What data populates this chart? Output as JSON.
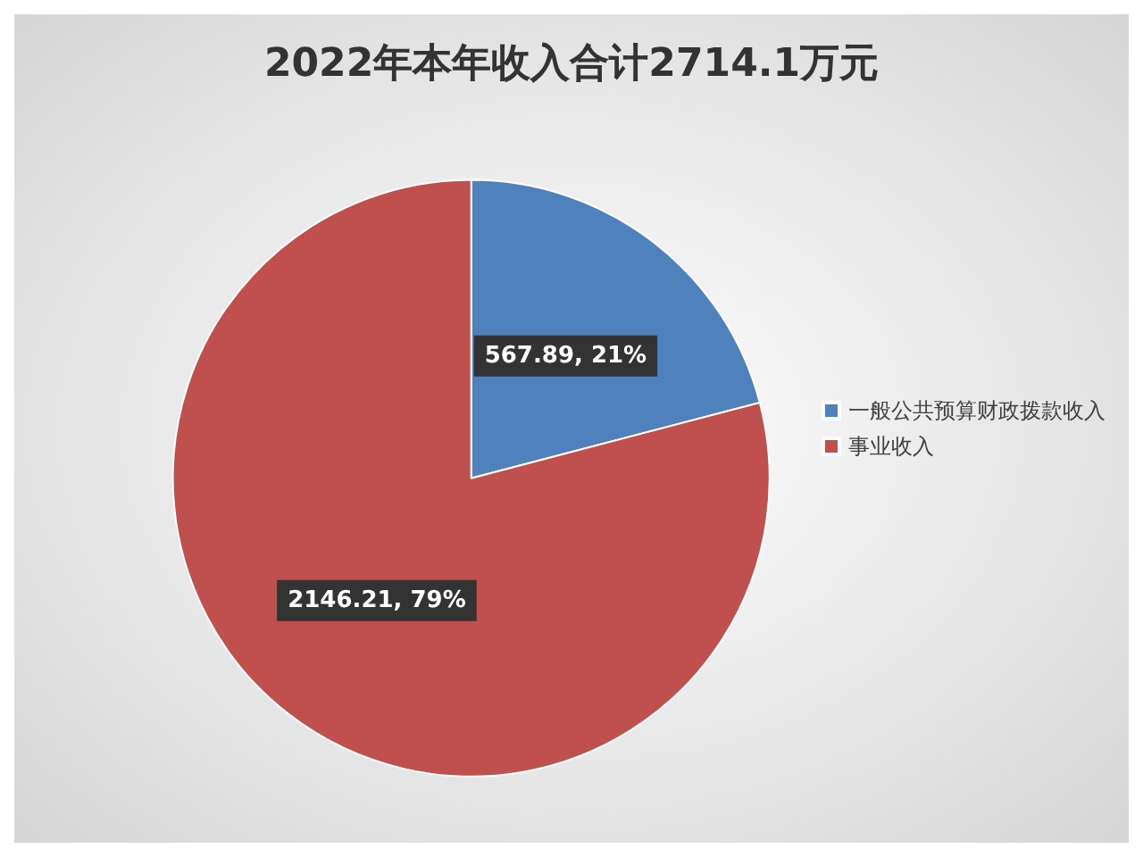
{
  "chart_data": {
    "type": "pie",
    "title": "2022年本年收入合计2714.1万元",
    "categories": [
      "一般公共预算财政拨款收入",
      "事业收入"
    ],
    "values": [
      567.89,
      2146.21
    ],
    "colors": [
      "#4f81bd",
      "#c0504d"
    ],
    "value_labels": [
      "567.89, 21%",
      "2146.21, 79%"
    ],
    "legend": "right"
  }
}
